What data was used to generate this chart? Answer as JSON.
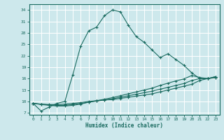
{
  "xlabel": "Humidex (Indice chaleur)",
  "bg_color": "#cde8ec",
  "grid_color": "#ffffff",
  "line_color": "#1a6b60",
  "xlim": [
    -0.5,
    23.5
  ],
  "ylim": [
    6.5,
    35.5
  ],
  "yticks": [
    7,
    10,
    13,
    16,
    19,
    22,
    25,
    28,
    31,
    34
  ],
  "xticks": [
    0,
    1,
    2,
    3,
    4,
    5,
    6,
    7,
    8,
    9,
    10,
    11,
    12,
    13,
    14,
    15,
    16,
    17,
    18,
    19,
    20,
    21,
    22,
    23
  ],
  "series1_x": [
    0,
    1,
    2,
    3,
    4,
    5,
    6,
    7,
    8,
    9,
    10,
    11,
    12,
    13,
    14,
    15,
    16,
    17,
    18,
    19,
    20,
    21,
    22,
    23
  ],
  "series1_y": [
    9.5,
    7.5,
    8.5,
    9.5,
    10.0,
    17.0,
    24.5,
    28.5,
    29.5,
    32.5,
    34.0,
    33.5,
    30.0,
    27.0,
    25.5,
    23.5,
    21.5,
    22.5,
    21.0,
    19.5,
    17.5,
    16.0,
    16.0,
    16.5
  ],
  "series2_x": [
    0,
    1,
    2,
    3,
    4,
    5,
    6,
    7,
    8,
    9,
    10,
    11,
    12,
    13,
    14,
    15,
    16,
    17,
    18,
    19,
    20,
    21,
    22,
    23
  ],
  "series2_y": [
    9.5,
    9.3,
    9.2,
    9.2,
    9.3,
    9.5,
    9.7,
    10.0,
    10.2,
    10.4,
    10.5,
    10.8,
    11.1,
    11.4,
    11.7,
    12.0,
    12.5,
    13.0,
    13.5,
    14.0,
    14.5,
    15.5,
    16.0,
    16.5
  ],
  "series3_x": [
    0,
    1,
    2,
    3,
    4,
    5,
    6,
    7,
    8,
    9,
    10,
    11,
    12,
    13,
    14,
    15,
    16,
    17,
    18,
    19,
    20,
    21,
    22,
    23
  ],
  "series3_y": [
    9.5,
    9.3,
    9.1,
    9.0,
    9.0,
    9.2,
    9.5,
    9.8,
    10.1,
    10.4,
    10.7,
    11.1,
    11.5,
    11.9,
    12.3,
    12.7,
    13.2,
    13.7,
    14.2,
    14.7,
    15.5,
    16.0,
    16.0,
    16.3
  ],
  "series4_x": [
    0,
    1,
    2,
    3,
    4,
    5,
    6,
    7,
    8,
    9,
    10,
    11,
    12,
    13,
    14,
    15,
    16,
    17,
    18,
    19,
    20,
    21,
    22,
    23
  ],
  "series4_y": [
    9.5,
    9.2,
    9.0,
    8.8,
    8.8,
    9.0,
    9.3,
    9.8,
    10.2,
    10.6,
    11.0,
    11.5,
    12.0,
    12.5,
    13.0,
    13.5,
    14.2,
    14.8,
    15.4,
    15.9,
    16.8,
    16.3,
    16.0,
    16.2
  ]
}
